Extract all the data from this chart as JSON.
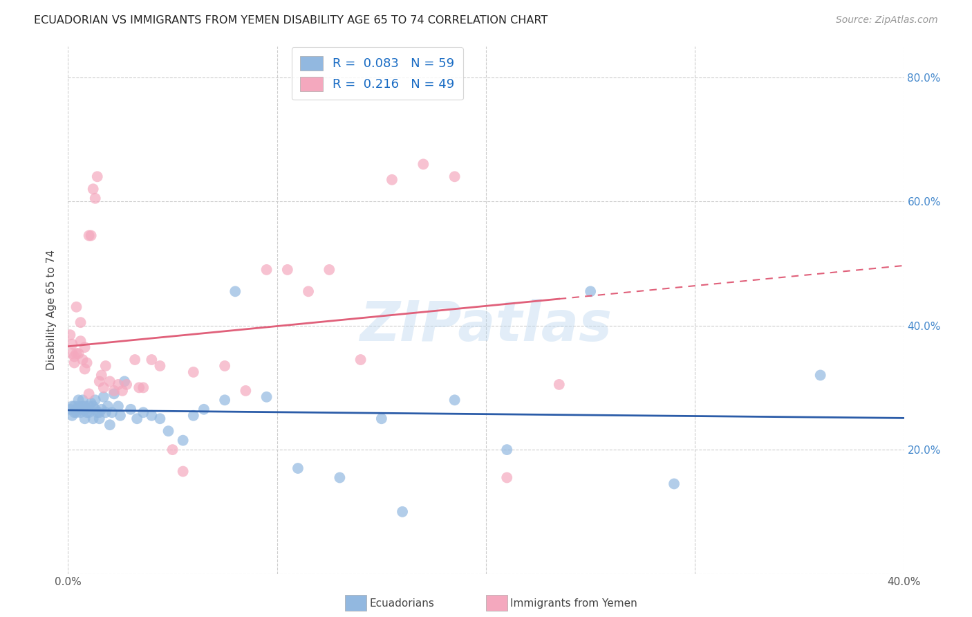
{
  "title": "ECUADORIAN VS IMMIGRANTS FROM YEMEN DISABILITY AGE 65 TO 74 CORRELATION CHART",
  "source": "Source: ZipAtlas.com",
  "ylabel_label": "Disability Age 65 to 74",
  "watermark": "ZIPatlas",
  "xlim": [
    0.0,
    0.4
  ],
  "ylim": [
    0.0,
    0.85
  ],
  "blue_R": 0.083,
  "blue_N": 59,
  "pink_R": 0.216,
  "pink_N": 49,
  "blue_color": "#92b8e0",
  "pink_color": "#f4a8be",
  "blue_line_color": "#2b5ca8",
  "pink_line_color": "#e0607a",
  "blue_x": [
    0.001,
    0.002,
    0.002,
    0.003,
    0.003,
    0.004,
    0.004,
    0.005,
    0.005,
    0.006,
    0.006,
    0.007,
    0.007,
    0.008,
    0.008,
    0.008,
    0.009,
    0.009,
    0.01,
    0.01,
    0.011,
    0.012,
    0.012,
    0.013,
    0.013,
    0.014,
    0.015,
    0.015,
    0.016,
    0.017,
    0.018,
    0.019,
    0.02,
    0.021,
    0.022,
    0.024,
    0.025,
    0.027,
    0.03,
    0.033,
    0.036,
    0.04,
    0.044,
    0.048,
    0.055,
    0.06,
    0.065,
    0.075,
    0.08,
    0.095,
    0.11,
    0.13,
    0.15,
    0.16,
    0.185,
    0.21,
    0.25,
    0.29,
    0.36
  ],
  "blue_y": [
    0.265,
    0.27,
    0.255,
    0.27,
    0.26,
    0.265,
    0.26,
    0.28,
    0.27,
    0.265,
    0.26,
    0.28,
    0.27,
    0.265,
    0.25,
    0.27,
    0.265,
    0.26,
    0.26,
    0.27,
    0.275,
    0.25,
    0.27,
    0.265,
    0.28,
    0.26,
    0.26,
    0.25,
    0.265,
    0.285,
    0.26,
    0.27,
    0.24,
    0.26,
    0.29,
    0.27,
    0.255,
    0.31,
    0.265,
    0.25,
    0.26,
    0.255,
    0.25,
    0.23,
    0.215,
    0.255,
    0.265,
    0.28,
    0.455,
    0.285,
    0.17,
    0.155,
    0.25,
    0.1,
    0.28,
    0.2,
    0.455,
    0.145,
    0.32
  ],
  "pink_x": [
    0.001,
    0.002,
    0.002,
    0.003,
    0.003,
    0.004,
    0.004,
    0.005,
    0.006,
    0.006,
    0.007,
    0.008,
    0.008,
    0.009,
    0.01,
    0.01,
    0.011,
    0.012,
    0.013,
    0.014,
    0.015,
    0.016,
    0.017,
    0.018,
    0.02,
    0.022,
    0.024,
    0.026,
    0.028,
    0.032,
    0.034,
    0.036,
    0.04,
    0.044,
    0.05,
    0.055,
    0.06,
    0.075,
    0.085,
    0.095,
    0.105,
    0.115,
    0.125,
    0.14,
    0.155,
    0.17,
    0.185,
    0.21,
    0.235
  ],
  "pink_y": [
    0.385,
    0.37,
    0.355,
    0.34,
    0.35,
    0.355,
    0.43,
    0.355,
    0.375,
    0.405,
    0.345,
    0.33,
    0.365,
    0.34,
    0.29,
    0.545,
    0.545,
    0.62,
    0.605,
    0.64,
    0.31,
    0.32,
    0.3,
    0.335,
    0.31,
    0.295,
    0.305,
    0.295,
    0.305,
    0.345,
    0.3,
    0.3,
    0.345,
    0.335,
    0.2,
    0.165,
    0.325,
    0.335,
    0.295,
    0.49,
    0.49,
    0.455,
    0.49,
    0.345,
    0.635,
    0.66,
    0.64,
    0.155,
    0.305
  ]
}
